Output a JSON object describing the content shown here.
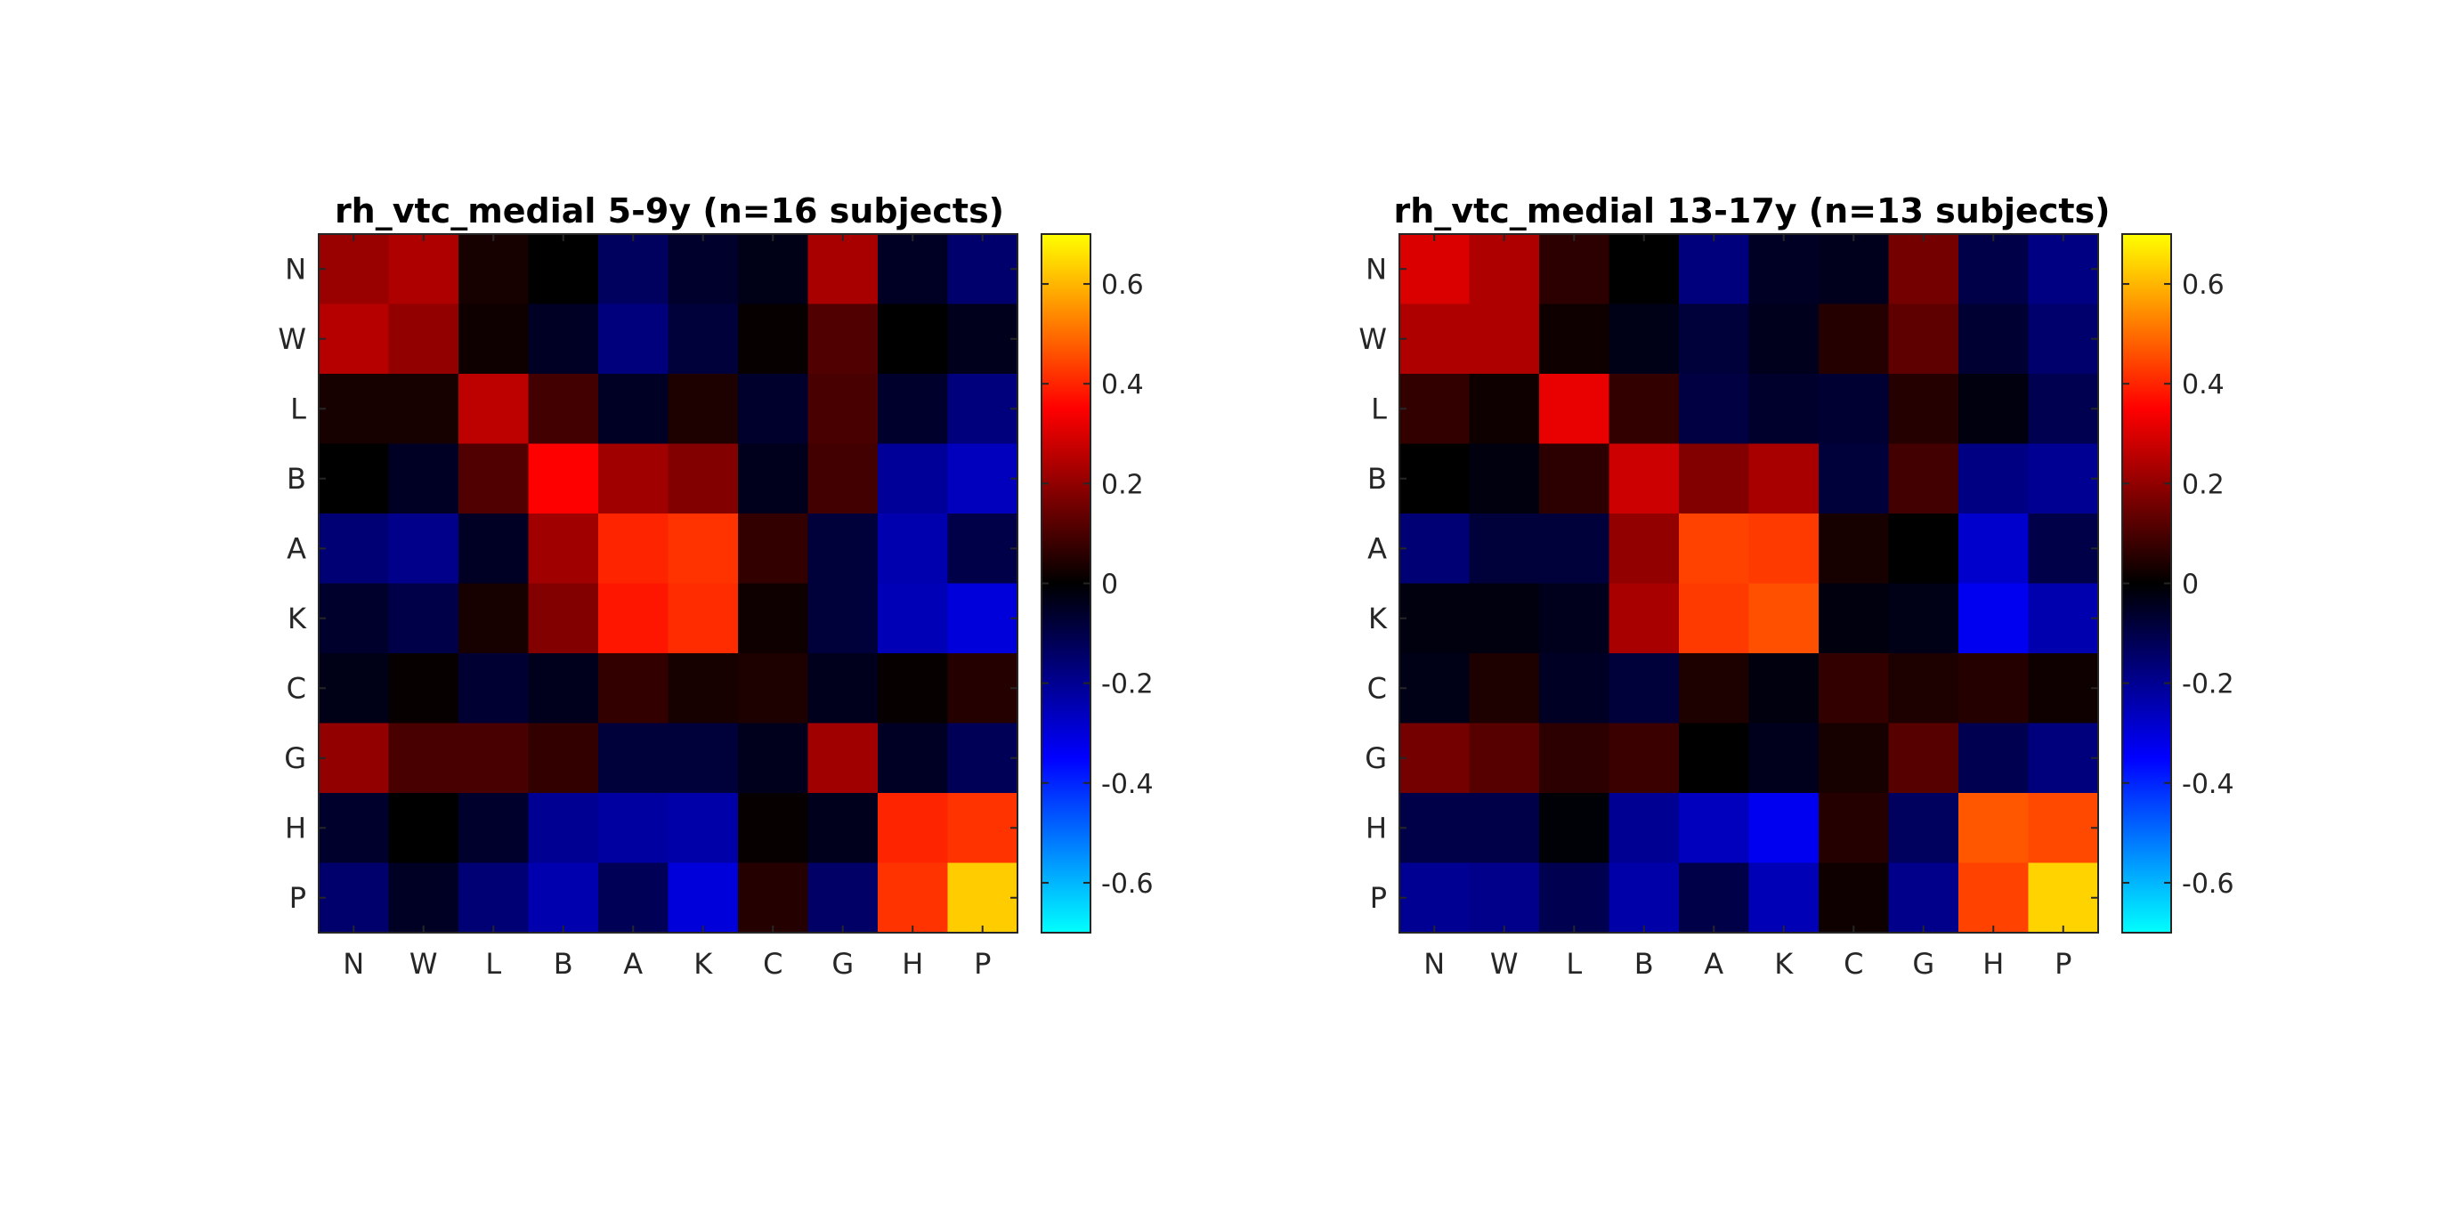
{
  "colormap": {
    "stops": [
      {
        "v": -0.7,
        "c": "#00ffff"
      },
      {
        "v": -0.35,
        "c": "#0000ff"
      },
      {
        "v": 0.0,
        "c": "#000000"
      },
      {
        "v": 0.35,
        "c": "#ff0000"
      },
      {
        "v": 0.7,
        "c": "#ffff00"
      }
    ]
  },
  "chart_data": [
    {
      "type": "heatmap",
      "title": "rh_vtc_medial 5-9y (n=16 subjects)",
      "xlabel": "",
      "ylabel": "",
      "x_categories": [
        "N",
        "W",
        "L",
        "B",
        "A",
        "K",
        "C",
        "G",
        "H",
        "P"
      ],
      "y_categories": [
        "N",
        "W",
        "L",
        "B",
        "A",
        "K",
        "C",
        "G",
        "H",
        "P"
      ],
      "clim": [
        -0.7,
        0.7
      ],
      "colorbar_ticks": [
        "-0.6",
        "-0.4",
        "-0.2",
        "0",
        "0.2",
        "0.4",
        "0.6"
      ],
      "values": [
        [
          0.21,
          0.24,
          0.03,
          0.0,
          -0.13,
          -0.06,
          -0.03,
          0.23,
          -0.05,
          -0.15
        ],
        [
          0.25,
          0.2,
          0.02,
          -0.05,
          -0.17,
          -0.08,
          0.01,
          0.11,
          0.0,
          -0.04
        ],
        [
          0.03,
          0.03,
          0.26,
          0.09,
          -0.05,
          0.04,
          -0.06,
          0.1,
          -0.06,
          -0.17
        ],
        [
          0.0,
          -0.05,
          0.11,
          0.35,
          0.22,
          0.18,
          -0.04,
          0.09,
          -0.21,
          -0.26
        ],
        [
          -0.16,
          -0.19,
          -0.05,
          0.22,
          0.4,
          0.42,
          0.07,
          -0.08,
          -0.24,
          -0.1
        ],
        [
          -0.06,
          -0.1,
          0.03,
          0.18,
          0.38,
          0.41,
          0.02,
          -0.08,
          -0.25,
          -0.3
        ],
        [
          -0.03,
          0.01,
          -0.07,
          -0.04,
          0.07,
          0.03,
          0.04,
          -0.04,
          0.01,
          0.05
        ],
        [
          0.2,
          0.1,
          0.1,
          0.07,
          -0.08,
          -0.08,
          -0.04,
          0.22,
          -0.05,
          -0.12
        ],
        [
          -0.06,
          0.0,
          -0.06,
          -0.2,
          -0.22,
          -0.23,
          0.01,
          -0.04,
          0.4,
          0.42
        ],
        [
          -0.15,
          -0.05,
          -0.16,
          -0.24,
          -0.12,
          -0.3,
          0.05,
          -0.14,
          0.42,
          0.63
        ]
      ]
    },
    {
      "type": "heatmap",
      "title": "rh_vtc_medial 13-17y (n=13 subjects)",
      "xlabel": "",
      "ylabel": "",
      "x_categories": [
        "N",
        "W",
        "L",
        "B",
        "A",
        "K",
        "C",
        "G",
        "H",
        "P"
      ],
      "y_categories": [
        "N",
        "W",
        "L",
        "B",
        "A",
        "K",
        "C",
        "G",
        "H",
        "P"
      ],
      "clim": [
        -0.7,
        0.7
      ],
      "colorbar_ticks": [
        "-0.6",
        "-0.4",
        "-0.2",
        "0",
        "0.2",
        "0.4",
        "0.6"
      ],
      "values": [
        [
          0.3,
          0.24,
          0.06,
          0.0,
          -0.17,
          -0.05,
          -0.04,
          0.16,
          -0.1,
          -0.18
        ],
        [
          0.24,
          0.24,
          0.02,
          -0.03,
          -0.08,
          -0.04,
          0.05,
          0.13,
          -0.07,
          -0.15
        ],
        [
          0.07,
          0.02,
          0.32,
          0.07,
          -0.09,
          -0.06,
          -0.07,
          0.05,
          -0.02,
          -0.11
        ],
        [
          0.0,
          -0.02,
          0.06,
          0.28,
          0.18,
          0.23,
          -0.08,
          0.09,
          -0.18,
          -0.2
        ],
        [
          -0.16,
          -0.08,
          -0.08,
          0.2,
          0.44,
          0.43,
          0.03,
          0.0,
          -0.28,
          -0.1
        ],
        [
          -0.02,
          -0.02,
          -0.04,
          0.23,
          0.43,
          0.46,
          -0.02,
          -0.03,
          -0.33,
          -0.24
        ],
        [
          -0.03,
          0.04,
          -0.05,
          -0.08,
          0.04,
          -0.02,
          0.07,
          0.04,
          0.05,
          0.02
        ],
        [
          0.16,
          0.12,
          0.06,
          0.08,
          0.0,
          -0.04,
          0.03,
          0.12,
          -0.11,
          -0.17
        ],
        [
          -0.1,
          -0.1,
          -0.01,
          -0.2,
          -0.26,
          -0.33,
          0.05,
          -0.13,
          0.47,
          0.45
        ],
        [
          -0.2,
          -0.19,
          -0.11,
          -0.23,
          -0.1,
          -0.25,
          0.02,
          -0.19,
          0.44,
          0.64
        ]
      ]
    }
  ]
}
